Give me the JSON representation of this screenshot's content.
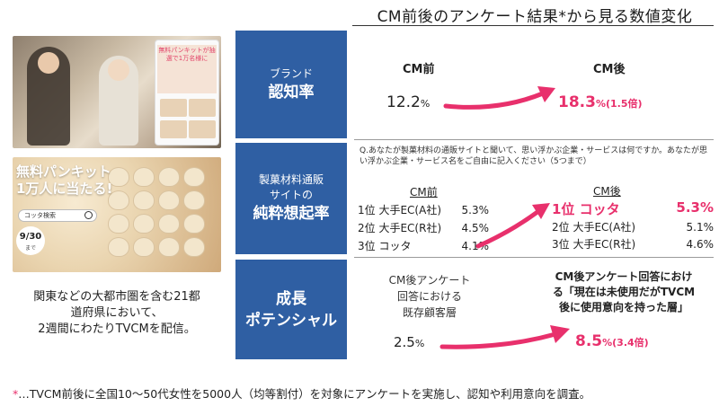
{
  "header": {
    "title": "CM前後のアンケート結果*から見る数値変化"
  },
  "photos": {
    "top": {
      "banner_text": "無料パンキットが抽選で1万名様に"
    },
    "bottom": {
      "title_line1": "無料パンキット",
      "title_line2": "1万人に当たる!",
      "search_text": "コッタ検索",
      "badge_date": "9/30",
      "badge_sub": "まで"
    }
  },
  "left_caption": {
    "line1": "関東などの大都市圏を含む21都",
    "line2": "道府県において、",
    "line3": "2週間にわたりTVCMを配信。"
  },
  "sections": [
    {
      "label_small": "ブランド",
      "label_big": "認知率",
      "before_heading": "CM前",
      "after_heading": "CM後",
      "before_value": "12.2",
      "before_unit": "%",
      "after_value": "18.3",
      "after_unit": "%(1.5倍)"
    },
    {
      "label_small_1": "製菓材料通販",
      "label_small_2": "サイトの",
      "label_big": "純粋想起率",
      "question": "Q.あなたが製菓材料の通販サイトと聞いて、思い浮かぶ企業・サービスは何ですか。あなたが思い浮かぶ企業・サービス名をご自由に記入ください（5つまで）",
      "before_heading": "CM前",
      "after_heading": "CM後",
      "before_ranks": [
        {
          "rank": "1位",
          "name": "大手EC(A社)",
          "value": "5.3%"
        },
        {
          "rank": "2位",
          "name": "大手EC(R社)",
          "value": "4.5%"
        },
        {
          "rank": "3位",
          "name": "コッタ",
          "value": "4.1%"
        }
      ],
      "after_top": {
        "rank": "1位",
        "name": "コッタ",
        "value": "5.3%"
      },
      "after_ranks": [
        {
          "rank": "2位",
          "name": "大手EC(A社)",
          "value": "5.1%"
        },
        {
          "rank": "3位",
          "name": "大手EC(R社)",
          "value": "4.6%"
        }
      ]
    },
    {
      "label_big_1": "成長",
      "label_big_2": "ポテンシャル",
      "before_heading_1": "CM後アンケート",
      "before_heading_2": "回答における",
      "before_heading_3": "既存顧客層",
      "after_heading_1": "CM後アンケート回答におけ",
      "after_heading_2": "る「現在は未使用だがTVCM",
      "after_heading_3": "後に使用意向を持った層」",
      "before_value": "2.5",
      "before_unit": "%",
      "after_value": "8.5",
      "after_unit": "%(3.4倍)"
    }
  ],
  "footnote": {
    "mark": "*",
    "text": "…TVCM前後に全国10〜50代女性を5000人（均等割付）を対象にアンケートを実施し、認知や利用意向を調査。"
  },
  "colors": {
    "accent": "#e8306c",
    "label_bg": "#2f5fa3"
  }
}
